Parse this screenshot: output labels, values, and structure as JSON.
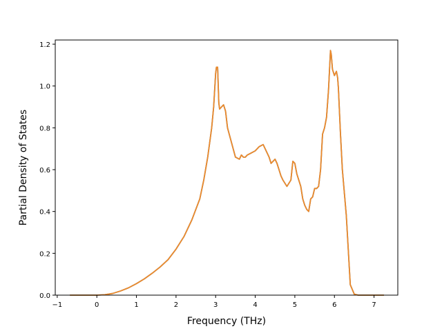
{
  "chart_data": {
    "type": "line",
    "title": "",
    "xlabel": "Frequency (THz)",
    "ylabel": "Partial Density of States",
    "xlim": [
      -1.05,
      7.6
    ],
    "ylim": [
      0.0,
      1.22
    ],
    "xticks": [
      -1,
      0,
      1,
      2,
      3,
      4,
      5,
      6,
      7
    ],
    "yticks": [
      0.0,
      0.2,
      0.4,
      0.6,
      0.8,
      1.0,
      1.2
    ],
    "xtick_labels": [
      "−1",
      "0",
      "1",
      "2",
      "3",
      "4",
      "5",
      "6",
      "7"
    ],
    "ytick_labels": [
      "0.0",
      "0.2",
      "0.4",
      "0.6",
      "0.8",
      "1.0",
      "1.2"
    ],
    "grid": false,
    "legend": "none",
    "series": [
      {
        "color": "#2f7fb8",
        "x": [
          -0.68,
          0.0,
          0.2,
          0.4,
          0.6,
          0.8,
          1.0,
          1.2,
          1.4,
          1.6,
          1.8,
          2.0,
          2.2,
          2.4,
          2.6,
          2.7,
          2.8,
          2.9,
          2.95,
          3.0,
          3.02,
          3.05,
          3.08,
          3.1,
          3.15,
          3.2,
          3.25,
          3.3,
          3.4,
          3.5,
          3.6,
          3.65,
          3.7,
          3.75,
          3.8,
          3.9,
          4.0,
          4.1,
          4.2,
          4.3,
          4.35,
          4.4,
          4.45,
          4.5,
          4.55,
          4.6,
          4.65,
          4.7,
          4.8,
          4.9,
          4.95,
          5.0,
          5.05,
          5.1,
          5.15,
          5.2,
          5.25,
          5.3,
          5.35,
          5.4,
          5.45,
          5.5,
          5.55,
          5.6,
          5.65,
          5.7,
          5.75,
          5.8,
          5.85,
          5.9,
          5.92,
          5.95,
          6.0,
          6.05,
          6.08,
          6.1,
          6.15,
          6.2,
          6.3,
          6.4,
          6.5,
          6.6,
          6.7,
          7.0,
          7.25
        ],
        "y": [
          0.0,
          0.0,
          0.002,
          0.008,
          0.02,
          0.035,
          0.055,
          0.078,
          0.105,
          0.135,
          0.17,
          0.22,
          0.28,
          0.36,
          0.46,
          0.55,
          0.66,
          0.8,
          0.9,
          1.06,
          1.09,
          1.09,
          0.92,
          0.89,
          0.9,
          0.91,
          0.88,
          0.8,
          0.73,
          0.66,
          0.65,
          0.67,
          0.66,
          0.66,
          0.67,
          0.68,
          0.69,
          0.71,
          0.72,
          0.68,
          0.66,
          0.63,
          0.64,
          0.65,
          0.63,
          0.6,
          0.57,
          0.55,
          0.52,
          0.55,
          0.64,
          0.63,
          0.58,
          0.55,
          0.52,
          0.46,
          0.43,
          0.41,
          0.4,
          0.46,
          0.47,
          0.51,
          0.51,
          0.52,
          0.6,
          0.77,
          0.8,
          0.85,
          0.98,
          1.17,
          1.15,
          1.08,
          1.05,
          1.07,
          1.04,
          0.99,
          0.78,
          0.6,
          0.38,
          0.05,
          0.005,
          0.0,
          0.0,
          0.0,
          0.0
        ]
      },
      {
        "color": "#ef8a2a",
        "x": [
          -0.68,
          0.0,
          0.2,
          0.4,
          0.6,
          0.8,
          1.0,
          1.2,
          1.4,
          1.6,
          1.8,
          2.0,
          2.2,
          2.4,
          2.6,
          2.7,
          2.8,
          2.9,
          2.95,
          3.0,
          3.02,
          3.05,
          3.08,
          3.1,
          3.15,
          3.2,
          3.25,
          3.3,
          3.4,
          3.5,
          3.6,
          3.65,
          3.7,
          3.75,
          3.8,
          3.9,
          4.0,
          4.1,
          4.2,
          4.3,
          4.35,
          4.4,
          4.45,
          4.5,
          4.55,
          4.6,
          4.65,
          4.7,
          4.8,
          4.9,
          4.95,
          5.0,
          5.05,
          5.1,
          5.15,
          5.2,
          5.25,
          5.3,
          5.35,
          5.4,
          5.45,
          5.5,
          5.55,
          5.6,
          5.65,
          5.7,
          5.75,
          5.8,
          5.85,
          5.9,
          5.92,
          5.95,
          6.0,
          6.05,
          6.08,
          6.1,
          6.15,
          6.2,
          6.3,
          6.4,
          6.5,
          6.6,
          6.7,
          7.0,
          7.25
        ],
        "y": [
          0.0,
          0.0,
          0.002,
          0.008,
          0.02,
          0.035,
          0.055,
          0.078,
          0.105,
          0.135,
          0.17,
          0.22,
          0.28,
          0.36,
          0.46,
          0.55,
          0.66,
          0.8,
          0.9,
          1.06,
          1.09,
          1.09,
          0.92,
          0.89,
          0.9,
          0.91,
          0.88,
          0.8,
          0.73,
          0.66,
          0.65,
          0.67,
          0.66,
          0.66,
          0.67,
          0.68,
          0.69,
          0.71,
          0.72,
          0.68,
          0.66,
          0.63,
          0.64,
          0.65,
          0.63,
          0.6,
          0.57,
          0.55,
          0.52,
          0.55,
          0.64,
          0.63,
          0.58,
          0.55,
          0.52,
          0.46,
          0.43,
          0.41,
          0.4,
          0.46,
          0.47,
          0.51,
          0.51,
          0.52,
          0.6,
          0.77,
          0.8,
          0.85,
          0.98,
          1.17,
          1.15,
          1.08,
          1.05,
          1.07,
          1.04,
          0.99,
          0.78,
          0.6,
          0.38,
          0.05,
          0.005,
          0.0,
          0.0,
          0.0,
          0.0
        ]
      }
    ]
  }
}
